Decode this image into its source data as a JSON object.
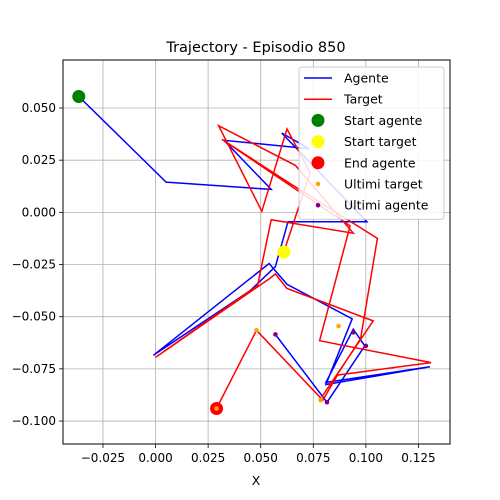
{
  "chart_data": {
    "type": "line",
    "title": "Trajectory - Episodio 850",
    "xlabel": "X",
    "ylabel": "",
    "xlim": [
      -0.044,
      0.14
    ],
    "ylim": [
      -0.111,
      0.073
    ],
    "xticks": [
      -0.025,
      0.0,
      0.025,
      0.05,
      0.075,
      0.1,
      0.125
    ],
    "xtick_labels": [
      "−0.025",
      "0.000",
      "0.025",
      "0.050",
      "0.075",
      "0.100",
      "0.125"
    ],
    "yticks": [
      0.05,
      0.025,
      0.0,
      -0.025,
      -0.05,
      -0.075,
      -0.1
    ],
    "ytick_labels": [
      "0.050",
      "0.025",
      "0.000",
      "−0.025",
      "−0.050",
      "−0.075",
      "−0.100"
    ],
    "grid": true,
    "legend_position": "top-right",
    "series": [
      {
        "name": "Agente",
        "kind": "line",
        "color": "#0000ff",
        "x": [
          -0.0365,
          0.005,
          0.055,
          0.0325,
          0.073,
          0.06,
          0.1005,
          0.063,
          0.057,
          0.045,
          -0.001,
          0.054,
          0.0625,
          0.0935,
          0.081,
          0.1305,
          0.081,
          0.094,
          0.0995,
          0.0815,
          0.057
        ],
        "y": [
          0.0555,
          0.0145,
          0.011,
          0.0345,
          0.0305,
          0.038,
          -0.0045,
          -0.0045,
          -0.026,
          -0.0375,
          -0.0685,
          -0.0245,
          -0.0345,
          -0.051,
          -0.0825,
          -0.074,
          -0.0815,
          -0.056,
          -0.064,
          -0.091,
          -0.0585
        ]
      },
      {
        "name": "Target",
        "kind": "line",
        "color": "#ff0000",
        "x": [
          0.061,
          0.0735,
          0.0625,
          0.0505,
          0.03,
          0.0665,
          0.094,
          0.055,
          0.0485,
          0.0,
          0.0545,
          0.057,
          0.0625,
          0.1035,
          0.079,
          0.0875,
          0.0975,
          0.1055,
          0.0645,
          0.0315,
          0.0925,
          0.078,
          0.131,
          0.0865,
          0.0795,
          0.048,
          0.029
        ],
        "y": [
          -0.019,
          0.019,
          0.04,
          0.0005,
          0.0415,
          0.0225,
          -0.01,
          -0.0035,
          -0.035,
          -0.0695,
          -0.0315,
          -0.0295,
          -0.0365,
          -0.052,
          -0.0885,
          -0.076,
          -0.0605,
          -0.0125,
          0.0135,
          0.035,
          -0.0065,
          -0.0615,
          -0.072,
          -0.078,
          -0.09,
          -0.0565,
          -0.094
        ]
      },
      {
        "name": "Start agente",
        "kind": "marker",
        "color": "#008000",
        "x": [
          -0.0365
        ],
        "y": [
          0.0555
        ]
      },
      {
        "name": "Start target",
        "kind": "marker",
        "color": "#ffff00",
        "x": [
          0.061
        ],
        "y": [
          -0.019
        ]
      },
      {
        "name": "End agente",
        "kind": "marker",
        "color": "#ff0000",
        "x": [
          0.029
        ],
        "y": [
          -0.094
        ]
      },
      {
        "name": "Ultimi target",
        "kind": "dots",
        "color": "#ffa500",
        "x": [
          0.087,
          0.0785,
          0.048,
          0.029
        ],
        "y": [
          -0.0545,
          -0.09,
          -0.0565,
          -0.094
        ]
      },
      {
        "name": "Ultimi agente",
        "kind": "dots",
        "color": "#800080",
        "x": [
          0.094,
          0.1,
          0.0815,
          0.057
        ],
        "y": [
          -0.0575,
          -0.064,
          -0.091,
          -0.0585
        ]
      }
    ]
  }
}
